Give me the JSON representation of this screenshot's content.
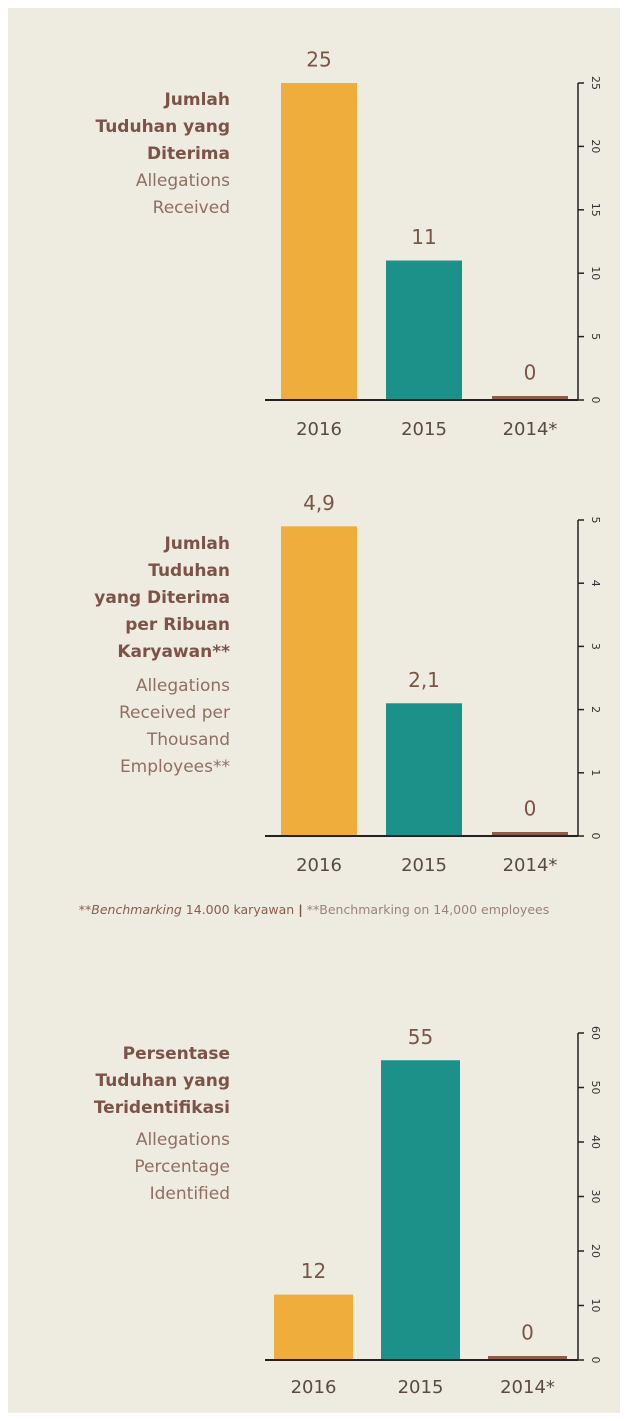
{
  "chart_data": [
    {
      "type": "bar",
      "title": [
        "Jumlah",
        "Tuduhan yang",
        "Diterima"
      ],
      "subtitle": [
        "Allegations",
        "Received"
      ],
      "categories": [
        "2016",
        "2015",
        "2014*"
      ],
      "values": [
        25,
        11,
        0
      ],
      "colors": [
        "#efae3b",
        "#1b918a",
        "#8c5c4c"
      ],
      "ylim": [
        0,
        25
      ],
      "yticks": [
        0,
        5,
        10,
        15,
        20,
        25
      ]
    },
    {
      "type": "bar",
      "title": [
        "Jumlah",
        "Tuduhan",
        "yang Diterima",
        "per Ribuan",
        "Karyawan**"
      ],
      "subtitle": [
        "Allegations",
        "Received per",
        "Thousand",
        "Employees**"
      ],
      "categories": [
        "2016",
        "2015",
        "2014*"
      ],
      "values": [
        4.9,
        2.1,
        0
      ],
      "value_labels": [
        "4,9",
        "2,1",
        "0"
      ],
      "colors": [
        "#efae3b",
        "#1b918a",
        "#8c5c4c"
      ],
      "ylim": [
        0,
        5
      ],
      "yticks": [
        0,
        1,
        2,
        3,
        4,
        5
      ]
    },
    {
      "type": "bar",
      "title": [
        "Persentase",
        "Tuduhan yang",
        "Teridentifikasi"
      ],
      "subtitle": [
        "Allegations",
        "Percentage",
        "Identified"
      ],
      "categories": [
        "2016",
        "2015",
        "2014*"
      ],
      "values": [
        12,
        55,
        0
      ],
      "colors": [
        "#efae3b",
        "#1b918a",
        "#8c5c4c"
      ],
      "ylim": [
        0,
        60
      ],
      "yticks": [
        0,
        10,
        20,
        30,
        40,
        50,
        60
      ]
    }
  ],
  "footnote": {
    "id_mark": "**",
    "id_italic": "Benchmarking",
    "id_rest": "14.000 karyawan",
    "separator": "|",
    "english": "**Benchmarking on 14,000 employees"
  }
}
